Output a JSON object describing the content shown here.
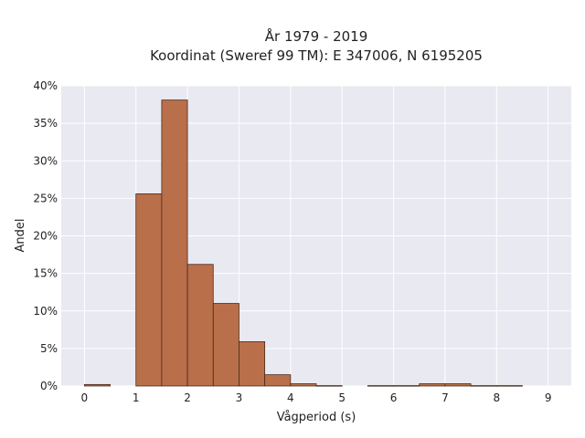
{
  "chart_data": {
    "type": "bar",
    "title_line1": "År 1979 - 2019",
    "title_line2": "Koordinat (Sweref 99 TM): E 347006, N 6195205",
    "xlabel": "Vågperiod (s)",
    "ylabel": "Andel",
    "xlim": [
      -0.45,
      9.45
    ],
    "ylim": [
      0,
      40
    ],
    "x_ticks": [
      0,
      1,
      2,
      3,
      4,
      5,
      6,
      7,
      8,
      9
    ],
    "y_ticks": [
      0,
      5,
      10,
      15,
      20,
      25,
      30,
      35,
      40
    ],
    "y_tick_labels": [
      "0%",
      "5%",
      "10%",
      "15%",
      "20%",
      "25%",
      "30%",
      "35%",
      "40%"
    ],
    "bin_width": 0.5,
    "bins": [
      {
        "x0": 0.0,
        "value": 0.2
      },
      {
        "x0": 1.0,
        "value": 25.6
      },
      {
        "x0": 1.5,
        "value": 38.1
      },
      {
        "x0": 2.0,
        "value": 16.2
      },
      {
        "x0": 2.5,
        "value": 11.0
      },
      {
        "x0": 3.0,
        "value": 5.9
      },
      {
        "x0": 3.5,
        "value": 1.5
      },
      {
        "x0": 4.0,
        "value": 0.3
      },
      {
        "x0": 4.5,
        "value": 0.05
      },
      {
        "x0": 5.5,
        "value": 0.05
      },
      {
        "x0": 6.0,
        "value": 0.05
      },
      {
        "x0": 6.5,
        "value": 0.3
      },
      {
        "x0": 7.0,
        "value": 0.3
      },
      {
        "x0": 7.5,
        "value": 0.05
      },
      {
        "x0": 8.0,
        "value": 0.05
      }
    ],
    "bar_color": "#b96f4a",
    "bar_edge_color": "#4a2a1a",
    "plot_background": "#e9e9f1",
    "grid": true,
    "grid_color": "#ffffff"
  }
}
